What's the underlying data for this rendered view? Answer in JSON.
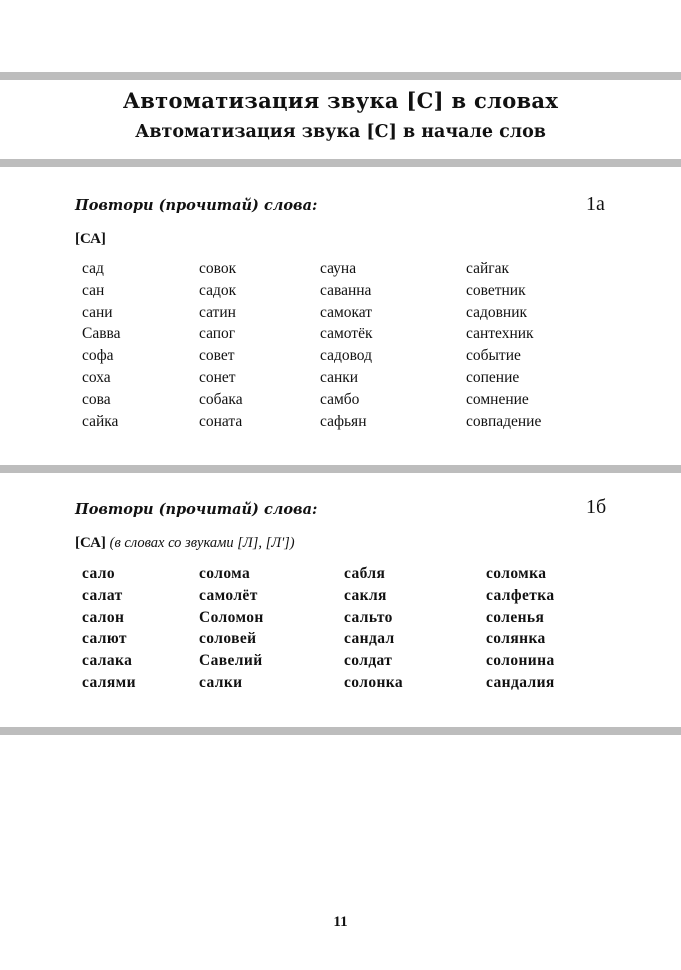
{
  "header": {
    "title": "Автоматизация звука [С] в словах",
    "subtitle": "Автоматизация звука [С] в начале слов"
  },
  "sections": [
    {
      "instruction": "Повтори (прочитай) слова:",
      "number": "1а",
      "syllable": "[СА]",
      "note": "",
      "columns": [
        [
          "сад",
          "сан",
          "сани",
          "Савва",
          "софа",
          "соха",
          "сова",
          "сайка"
        ],
        [
          "совок",
          "садок",
          "сатин",
          "сапог",
          "совет",
          "сонет",
          "собака",
          "соната"
        ],
        [
          "сауна",
          "саванна",
          "самокат",
          "самотёк",
          "садовод",
          "санки",
          "самбо",
          "сафьян"
        ],
        [
          "сайгак",
          "советник",
          "садовник",
          "сантехник",
          "событие",
          "сопение",
          "сомнение",
          "совпадение"
        ]
      ]
    },
    {
      "instruction": "Повтори (прочитай) слова:",
      "number": "1б",
      "syllable": "[СА]",
      "note": "(в словах со звуками [Л], [Л'])",
      "columns": [
        [
          "сало",
          "салат",
          "салон",
          "салют",
          "салака",
          "салями"
        ],
        [
          "солома",
          "самолёт",
          "Соломон",
          "соловей",
          "Савелий",
          "салки"
        ],
        [
          "сабля",
          "сакля",
          "сальто",
          "сандал",
          "солдат",
          "солонка"
        ],
        [
          "соломка",
          "салфетка",
          "соленья",
          "солянка",
          "солонина",
          "сандалия"
        ]
      ]
    }
  ],
  "footer": {
    "page_number": "11"
  }
}
